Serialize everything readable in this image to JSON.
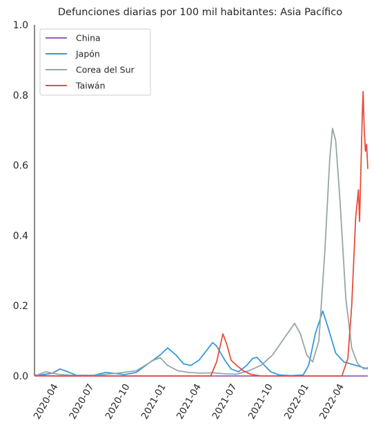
{
  "chart_data": {
    "type": "line",
    "title": "Defunciones diarias por 100 mil habitantes: Asia Pacífico",
    "xlabel": "",
    "ylabel": "",
    "x_range": [
      "2020-02-15",
      "2022-06-15"
    ],
    "ylim": [
      0.0,
      1.0
    ],
    "y_ticks": [
      "0.0",
      "0.2",
      "0.4",
      "0.6",
      "0.8",
      "1.0"
    ],
    "y_tick_values": [
      0.0,
      0.2,
      0.4,
      0.6,
      0.8,
      1.0
    ],
    "x_ticks": [
      {
        "date": "2020-04-01",
        "label": "2020-04"
      },
      {
        "date": "2020-07-01",
        "label": "2020-07"
      },
      {
        "date": "2020-10-01",
        "label": "2020-10"
      },
      {
        "date": "2021-01-01",
        "label": "2021-01"
      },
      {
        "date": "2021-04-01",
        "label": "2021-04"
      },
      {
        "date": "2021-07-01",
        "label": "2021-07"
      },
      {
        "date": "2021-10-01",
        "label": "2021-10"
      },
      {
        "date": "2022-01-01",
        "label": "2022-01"
      },
      {
        "date": "2022-04-01",
        "label": "2022-04"
      }
    ],
    "grid": false,
    "legend_position": "top-left",
    "series": [
      {
        "name": "China",
        "color": "#9b59b6",
        "points": [
          [
            "2020-02-15",
            0.003
          ],
          [
            "2020-03-15",
            0.001
          ],
          [
            "2020-04-15",
            0.0
          ],
          [
            "2022-06-15",
            0.0
          ]
        ]
      },
      {
        "name": "Japón",
        "color": "#3498db",
        "points": [
          [
            "2020-02-15",
            0.0
          ],
          [
            "2020-04-01",
            0.008
          ],
          [
            "2020-04-20",
            0.02
          ],
          [
            "2020-05-10",
            0.012
          ],
          [
            "2020-06-01",
            0.002
          ],
          [
            "2020-07-15",
            0.002
          ],
          [
            "2020-08-15",
            0.01
          ],
          [
            "2020-09-01",
            0.008
          ],
          [
            "2020-10-01",
            0.004
          ],
          [
            "2020-11-01",
            0.01
          ],
          [
            "2020-12-01",
            0.035
          ],
          [
            "2021-01-01",
            0.06
          ],
          [
            "2021-01-20",
            0.08
          ],
          [
            "2021-02-10",
            0.06
          ],
          [
            "2021-03-01",
            0.035
          ],
          [
            "2021-03-20",
            0.03
          ],
          [
            "2021-04-10",
            0.045
          ],
          [
            "2021-05-01",
            0.075
          ],
          [
            "2021-05-15",
            0.095
          ],
          [
            "2021-05-25",
            0.085
          ],
          [
            "2021-06-15",
            0.045
          ],
          [
            "2021-07-01",
            0.02
          ],
          [
            "2021-07-20",
            0.012
          ],
          [
            "2021-08-10",
            0.03
          ],
          [
            "2021-08-25",
            0.05
          ],
          [
            "2021-09-05",
            0.053
          ],
          [
            "2021-09-20",
            0.035
          ],
          [
            "2021-10-10",
            0.012
          ],
          [
            "2021-11-01",
            0.003
          ],
          [
            "2021-12-01",
            0.001
          ],
          [
            "2022-01-01",
            0.003
          ],
          [
            "2022-01-15",
            0.03
          ],
          [
            "2022-02-01",
            0.12
          ],
          [
            "2022-02-20",
            0.185
          ],
          [
            "2022-03-05",
            0.14
          ],
          [
            "2022-03-25",
            0.065
          ],
          [
            "2022-04-15",
            0.04
          ],
          [
            "2022-05-10",
            0.032
          ],
          [
            "2022-06-15",
            0.02
          ]
        ]
      },
      {
        "name": "Corea del Sur",
        "color": "#95a5a6",
        "points": [
          [
            "2020-02-15",
            0.0
          ],
          [
            "2020-03-15",
            0.012
          ],
          [
            "2020-04-15",
            0.005
          ],
          [
            "2020-06-01",
            0.001
          ],
          [
            "2020-08-01",
            0.003
          ],
          [
            "2020-09-15",
            0.008
          ],
          [
            "2020-11-01",
            0.015
          ],
          [
            "2020-12-15",
            0.045
          ],
          [
            "2021-01-01",
            0.052
          ],
          [
            "2021-01-20",
            0.03
          ],
          [
            "2021-02-15",
            0.015
          ],
          [
            "2021-03-15",
            0.01
          ],
          [
            "2021-04-15",
            0.008
          ],
          [
            "2021-05-15",
            0.009
          ],
          [
            "2021-06-15",
            0.006
          ],
          [
            "2021-07-15",
            0.005
          ],
          [
            "2021-08-15",
            0.015
          ],
          [
            "2021-09-15",
            0.03
          ],
          [
            "2021-10-15",
            0.06
          ],
          [
            "2021-11-15",
            0.11
          ],
          [
            "2021-12-01",
            0.135
          ],
          [
            "2021-12-10",
            0.15
          ],
          [
            "2021-12-25",
            0.12
          ],
          [
            "2022-01-10",
            0.06
          ],
          [
            "2022-01-25",
            0.04
          ],
          [
            "2022-02-10",
            0.1
          ],
          [
            "2022-02-25",
            0.35
          ],
          [
            "2022-03-10",
            0.62
          ],
          [
            "2022-03-17",
            0.705
          ],
          [
            "2022-03-25",
            0.67
          ],
          [
            "2022-04-05",
            0.5
          ],
          [
            "2022-04-20",
            0.22
          ],
          [
            "2022-05-05",
            0.08
          ],
          [
            "2022-05-20",
            0.035
          ],
          [
            "2022-06-05",
            0.02
          ],
          [
            "2022-06-15",
            0.025
          ]
        ]
      },
      {
        "name": "Taiwán",
        "color": "#e74c3c",
        "points": [
          [
            "2020-02-15",
            0.0
          ],
          [
            "2021-05-10",
            0.0
          ],
          [
            "2021-05-25",
            0.04
          ],
          [
            "2021-06-05",
            0.095
          ],
          [
            "2021-06-10",
            0.12
          ],
          [
            "2021-06-20",
            0.09
          ],
          [
            "2021-07-01",
            0.045
          ],
          [
            "2021-07-15",
            0.03
          ],
          [
            "2021-08-01",
            0.015
          ],
          [
            "2021-08-20",
            0.005
          ],
          [
            "2021-09-15",
            0.0
          ],
          [
            "2022-04-10",
            0.0
          ],
          [
            "2022-04-25",
            0.05
          ],
          [
            "2022-05-05",
            0.2
          ],
          [
            "2022-05-15",
            0.45
          ],
          [
            "2022-05-22",
            0.53
          ],
          [
            "2022-05-25",
            0.44
          ],
          [
            "2022-06-01",
            0.75
          ],
          [
            "2022-06-03",
            0.81
          ],
          [
            "2022-06-06",
            0.7
          ],
          [
            "2022-06-09",
            0.64
          ],
          [
            "2022-06-12",
            0.66
          ],
          [
            "2022-06-15",
            0.59
          ]
        ]
      }
    ]
  }
}
